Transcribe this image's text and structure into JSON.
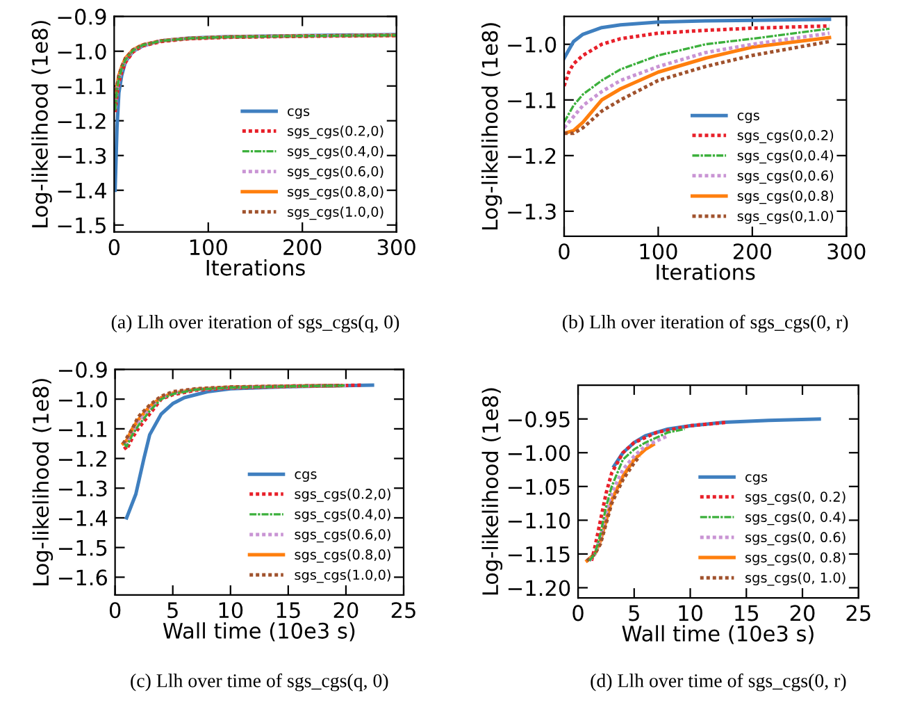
{
  "chart_data": [
    {
      "type": "line",
      "title": "(a) Llh over iteration of sgs_cgs(q, 0)",
      "xlabel": "Iterations",
      "ylabel": "Log-likelihood (1e8)",
      "xlim": [
        0,
        300
      ],
      "xticks": [
        0,
        100,
        200,
        300
      ],
      "ylim": [
        -1.52,
        -0.9
      ],
      "yticks": [
        {
          "value": -1.5,
          "label": "−1.5"
        },
        {
          "value": -1.4,
          "label": "−1.4"
        },
        {
          "value": -1.3,
          "label": "−1.3"
        },
        {
          "value": -1.2,
          "label": "−1.2"
        },
        {
          "value": -1.1,
          "label": "−1.1"
        },
        {
          "value": -1.0,
          "label": "−1.0"
        },
        {
          "value": -0.9,
          "label": "−0.9"
        }
      ],
      "legend": "bottom right",
      "grid": false,
      "series": [
        {
          "name": "cgs",
          "color": "#3f7fbf",
          "line_style": "solid",
          "x": [
            1,
            3,
            5,
            8,
            12,
            20,
            30,
            50,
            80,
            120,
            200,
            300
          ],
          "values": [
            -1.4,
            -1.22,
            -1.12,
            -1.07,
            -1.03,
            -1.0,
            -0.985,
            -0.97,
            -0.962,
            -0.958,
            -0.955,
            -0.952
          ]
        },
        {
          "name": "sgs_cgs(0.2,0)",
          "color": "#e8202a",
          "line_style": "dotted",
          "x": [
            1,
            3,
            5,
            8,
            12,
            20,
            30,
            50,
            80,
            120,
            200,
            300
          ],
          "values": [
            -1.175,
            -1.125,
            -1.09,
            -1.06,
            -1.032,
            -1.002,
            -0.985,
            -0.972,
            -0.964,
            -0.96,
            -0.957,
            -0.955
          ]
        },
        {
          "name": "sgs_cgs(0.4,0)",
          "color": "#3cb03c",
          "line_style": "dashdot",
          "x": [
            1,
            3,
            5,
            8,
            12,
            20,
            30,
            50,
            80,
            120,
            200,
            300
          ],
          "values": [
            -1.17,
            -1.11,
            -1.08,
            -1.05,
            -1.025,
            -0.998,
            -0.983,
            -0.97,
            -0.963,
            -0.959,
            -0.956,
            -0.954
          ]
        },
        {
          "name": "sgs_cgs(0.6,0)",
          "color": "#c994d4",
          "line_style": "dotted",
          "x": [
            1,
            3,
            5,
            8,
            12,
            20,
            30,
            50,
            80,
            120,
            200,
            300
          ],
          "values": [
            -1.165,
            -1.11,
            -1.08,
            -1.05,
            -1.025,
            -0.998,
            -0.983,
            -0.97,
            -0.963,
            -0.959,
            -0.956,
            -0.954
          ]
        },
        {
          "name": "sgs_cgs(0.8,0)",
          "color": "#ff7f0e",
          "line_style": "solid",
          "x": [
            1,
            3,
            5,
            8,
            12,
            20,
            30,
            50,
            80,
            120,
            200,
            300
          ],
          "values": [
            -1.15,
            -1.1,
            -1.07,
            -1.045,
            -1.02,
            -0.996,
            -0.982,
            -0.97,
            -0.963,
            -0.959,
            -0.956,
            -0.954
          ]
        },
        {
          "name": "sgs_cgs(1.0,0)",
          "color": "#a0522d",
          "line_style": "dotted",
          "x": [
            1,
            3,
            5,
            8,
            12,
            20,
            30,
            50,
            80,
            120,
            200,
            300
          ],
          "values": [
            -1.15,
            -1.1,
            -1.07,
            -1.045,
            -1.02,
            -0.996,
            -0.982,
            -0.97,
            -0.963,
            -0.959,
            -0.956,
            -0.954
          ]
        }
      ]
    },
    {
      "type": "line",
      "title": "(b) Llh over iteration of sgs_cgs(0, r)",
      "xlabel": "Iterations",
      "ylabel": "Log-likelihood (1e8)",
      "xlim": [
        0,
        300
      ],
      "xticks": [
        0,
        100,
        200,
        300
      ],
      "ylim": [
        -1.345,
        -0.95
      ],
      "yticks": [
        {
          "value": -1.3,
          "label": "−1.3"
        },
        {
          "value": -1.2,
          "label": "−1.2"
        },
        {
          "value": -1.1,
          "label": "−1.1"
        },
        {
          "value": -1.0,
          "label": "−1.0"
        }
      ],
      "legend": "bottom right",
      "grid": false,
      "series": [
        {
          "name": "cgs",
          "color": "#3f7fbf",
          "line_style": "solid",
          "x": [
            0,
            5,
            10,
            20,
            40,
            60,
            100,
            150,
            200,
            282
          ],
          "values": [
            -1.025,
            -1.01,
            -0.995,
            -0.982,
            -0.97,
            -0.965,
            -0.96,
            -0.958,
            -0.957,
            -0.955
          ]
        },
        {
          "name": "sgs_cgs(0,0.2)",
          "color": "#e8202a",
          "line_style": "dotted",
          "x": [
            0,
            5,
            10,
            20,
            40,
            60,
            100,
            150,
            200,
            282
          ],
          "values": [
            -1.075,
            -1.05,
            -1.035,
            -1.02,
            -1.0,
            -0.99,
            -0.98,
            -0.975,
            -0.971,
            -0.967
          ]
        },
        {
          "name": "sgs_cgs(0,0.4)",
          "color": "#3cb03c",
          "line_style": "dashdot",
          "x": [
            0,
            10,
            20,
            40,
            60,
            100,
            150,
            200,
            282
          ],
          "values": [
            -1.14,
            -1.11,
            -1.09,
            -1.065,
            -1.045,
            -1.02,
            -1.0,
            -0.99,
            -0.972
          ]
        },
        {
          "name": "sgs_cgs(0,0.6)",
          "color": "#c994d4",
          "line_style": "dotted",
          "x": [
            0,
            10,
            20,
            40,
            60,
            100,
            150,
            200,
            282
          ],
          "values": [
            -1.15,
            -1.13,
            -1.11,
            -1.085,
            -1.065,
            -1.04,
            -1.015,
            -1.0,
            -0.98
          ]
        },
        {
          "name": "sgs_cgs(0,0.8)",
          "color": "#ff7f0e",
          "line_style": "solid",
          "x": [
            0,
            10,
            20,
            30,
            40,
            60,
            100,
            150,
            200,
            282
          ],
          "values": [
            -1.16,
            -1.155,
            -1.14,
            -1.12,
            -1.1,
            -1.08,
            -1.05,
            -1.025,
            -1.005,
            -0.988
          ]
        },
        {
          "name": "sgs_cgs(0,1.0)",
          "color": "#a0522d",
          "line_style": "dotted",
          "x": [
            0,
            10,
            20,
            30,
            40,
            60,
            100,
            150,
            200,
            282
          ],
          "values": [
            -1.16,
            -1.16,
            -1.15,
            -1.135,
            -1.12,
            -1.1,
            -1.065,
            -1.04,
            -1.02,
            -0.995
          ]
        }
      ]
    },
    {
      "type": "line",
      "title": "(c) Llh over time of sgs_cgs(q, 0)",
      "xlabel": "Wall time (10e3 s)",
      "ylabel": "Log-likelihood (1e8)",
      "xlim": [
        0,
        25
      ],
      "xticks": [
        0,
        5,
        10,
        15,
        20,
        25
      ],
      "ylim": [
        -1.66,
        -0.9
      ],
      "yticks": [
        {
          "value": -1.6,
          "label": "−1.6"
        },
        {
          "value": -1.5,
          "label": "−1.5"
        },
        {
          "value": -1.4,
          "label": "−1.4"
        },
        {
          "value": -1.3,
          "label": "−1.3"
        },
        {
          "value": -1.2,
          "label": "−1.2"
        },
        {
          "value": -1.1,
          "label": "−1.1"
        },
        {
          "value": -1.0,
          "label": "−1.0"
        },
        {
          "value": -0.9,
          "label": "−0.9"
        }
      ],
      "legend": "bottom right",
      "grid": false,
      "series": [
        {
          "name": "cgs",
          "color": "#3f7fbf",
          "line_style": "solid",
          "x": [
            1,
            1.8,
            2.5,
            3,
            4,
            5,
            6,
            8,
            10,
            15,
            22.3
          ],
          "values": [
            -1.4,
            -1.32,
            -1.2,
            -1.12,
            -1.05,
            -1.015,
            -0.995,
            -0.975,
            -0.965,
            -0.958,
            -0.953
          ]
        },
        {
          "name": "sgs_cgs(0.2,0)",
          "color": "#e8202a",
          "line_style": "dotted",
          "x": [
            0.8,
            1,
            1.5,
            2,
            3,
            4,
            5,
            7,
            10,
            15,
            21.3
          ],
          "values": [
            -1.16,
            -1.17,
            -1.13,
            -1.1,
            -1.05,
            -1.0,
            -0.985,
            -0.97,
            -0.962,
            -0.957,
            -0.953
          ]
        },
        {
          "name": "sgs_cgs(0.4,0)",
          "color": "#3cb03c",
          "line_style": "dashdot",
          "x": [
            0.8,
            1,
            1.5,
            2,
            3,
            4,
            5,
            7,
            10,
            15,
            20
          ],
          "values": [
            -1.15,
            -1.16,
            -1.12,
            -1.09,
            -1.04,
            -1.0,
            -0.983,
            -0.968,
            -0.961,
            -0.957,
            -0.954
          ]
        },
        {
          "name": "sgs_cgs(0.6,0)",
          "color": "#c994d4",
          "line_style": "dotted",
          "x": [
            0.8,
            1,
            1.5,
            2,
            3,
            4,
            5,
            7,
            10,
            15,
            20
          ],
          "values": [
            -1.15,
            -1.15,
            -1.11,
            -1.08,
            -1.03,
            -0.995,
            -0.98,
            -0.967,
            -0.96,
            -0.956,
            -0.954
          ]
        },
        {
          "name": "sgs_cgs(0.8,0)",
          "color": "#ff7f0e",
          "line_style": "solid",
          "x": [
            0.7,
            1,
            1.5,
            2,
            3,
            4,
            5,
            7,
            10,
            15,
            20
          ],
          "values": [
            -1.15,
            -1.14,
            -1.1,
            -1.07,
            -1.025,
            -0.995,
            -0.98,
            -0.967,
            -0.96,
            -0.956,
            -0.954
          ]
        },
        {
          "name": "sgs_cgs(1.0,0)",
          "color": "#a0522d",
          "line_style": "dotted",
          "x": [
            0.7,
            1.5,
            2,
            3,
            4,
            5,
            7,
            10,
            15,
            19.5
          ],
          "values": [
            -1.15,
            -1.1,
            -1.06,
            -1.02,
            -0.99,
            -0.975,
            -0.965,
            -0.959,
            -0.956,
            -0.954
          ]
        }
      ]
    },
    {
      "type": "line",
      "title": "(d) Llh over time of sgs_cgs(0, r)",
      "xlabel": "Wall time (10e3 s)",
      "ylabel": "Log-likelihood (1e8)",
      "xlim": [
        0,
        25
      ],
      "xticks": [
        0,
        5,
        10,
        15,
        20,
        25
      ],
      "ylim": [
        -1.215,
        -0.9
      ],
      "yticks": [
        {
          "value": -1.2,
          "label": "−1.20"
        },
        {
          "value": -1.15,
          "label": "−1.15"
        },
        {
          "value": -1.1,
          "label": "−1.10"
        },
        {
          "value": -1.05,
          "label": "−1.05"
        },
        {
          "value": -1.0,
          "label": "−1.00"
        },
        {
          "value": -0.95,
          "label": "−0.95"
        }
      ],
      "legend": "bottom right",
      "grid": false,
      "series": [
        {
          "name": "cgs",
          "color": "#3f7fbf",
          "line_style": "solid",
          "x": [
            3.2,
            4,
            5,
            6,
            8,
            10,
            13,
            17,
            21.5
          ],
          "values": [
            -1.02,
            -1.0,
            -0.985,
            -0.975,
            -0.965,
            -0.96,
            -0.955,
            -0.952,
            -0.95
          ]
        },
        {
          "name": "sgs_cgs(0, 0.2)",
          "color": "#e8202a",
          "line_style": "dotted",
          "x": [
            1.2,
            1.5,
            2,
            2.5,
            3,
            4,
            5,
            7,
            10,
            13.3
          ],
          "values": [
            -1.16,
            -1.14,
            -1.1,
            -1.06,
            -1.03,
            -1.0,
            -0.985,
            -0.97,
            -0.96,
            -0.955
          ]
        },
        {
          "name": "sgs_cgs(0, 0.4)",
          "color": "#3cb03c",
          "line_style": "dashdot",
          "x": [
            1,
            1.5,
            2,
            2.5,
            3,
            4,
            5,
            6,
            8,
            9.5
          ],
          "values": [
            -1.16,
            -1.15,
            -1.12,
            -1.08,
            -1.05,
            -1.01,
            -0.995,
            -0.985,
            -0.97,
            -0.965
          ]
        },
        {
          "name": "sgs_cgs(0, 0.6)",
          "color": "#c994d4",
          "line_style": "dotted",
          "x": [
            1,
            1.5,
            2,
            2.5,
            3,
            4,
            5,
            6,
            8
          ],
          "values": [
            -1.16,
            -1.15,
            -1.125,
            -1.09,
            -1.06,
            -1.025,
            -1.005,
            -0.99,
            -0.975
          ]
        },
        {
          "name": "sgs_cgs(0, 0.8)",
          "color": "#ff7f0e",
          "line_style": "solid",
          "x": [
            0.8,
            1.5,
            2,
            2.5,
            3,
            4,
            5,
            6,
            6.7
          ],
          "values": [
            -1.16,
            -1.15,
            -1.13,
            -1.1,
            -1.07,
            -1.035,
            -1.01,
            -0.995,
            -0.988
          ]
        },
        {
          "name": "sgs_cgs(0, 1.0)",
          "color": "#a0522d",
          "line_style": "dotted",
          "x": [
            0.8,
            1.5,
            2,
            2.5,
            3,
            4,
            5,
            5.5
          ],
          "values": [
            -1.16,
            -1.15,
            -1.135,
            -1.105,
            -1.075,
            -1.04,
            -1.015,
            -1.005
          ]
        }
      ]
    }
  ]
}
